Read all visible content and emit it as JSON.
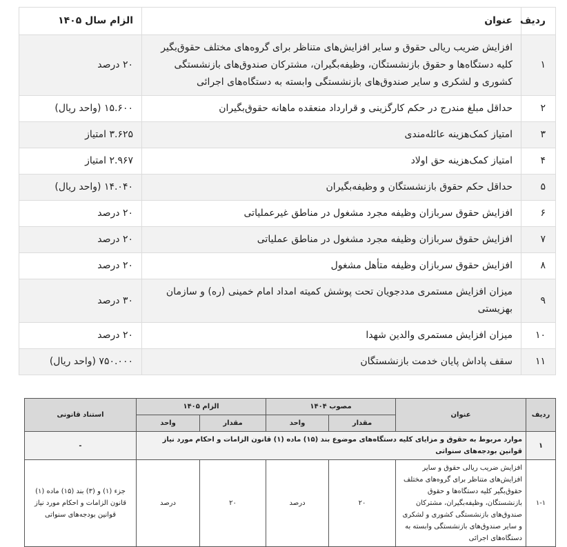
{
  "table1": {
    "header": [
      "ردیف",
      "عنوان",
      "الزام سال ۱۴۰۵"
    ],
    "rows": [
      [
        "۱",
        "افزایش ضریب ریالی حقوق و سایر افزایش‌های متناظر برای گروه‌های مختلف حقوق‌بگیر کلیه دستگاه‌ها و حقوق بازنشستگان، وظیفه‌بگیران، مشترکان صندوق‌های بازنشستگی کشوری و لشکری و سایر صندوق‌های بازنشستگی وابسته به دستگاه‌های اجرائی",
        "۲۰ درصد"
      ],
      [
        "۲",
        "حداقل مبلغ مندرج در حکم کارگزینی و قرارداد منعقده ماهانه حقوق‌بگیران",
        "۱۵.۶۰۰ (واحد ریال)"
      ],
      [
        "۳",
        "امتیاز کمک‌هزینه عائله‌مندی",
        "۳.۶۲۵ امتیاز"
      ],
      [
        "۴",
        "امتیاز کمک‌هزینه حق اولاد",
        "۲.۹۶۷ امتیاز"
      ],
      [
        "۵",
        "حداقل حکم حقوق بازنشستگان و وظیفه‌بگیران",
        "۱۴.۰۴۰ (واحد ریال)"
      ],
      [
        "۶",
        "افزایش حقوق سربازان وظیفه مجرد مشغول در مناطق غیرعملیاتی",
        "۲۰ درصد"
      ],
      [
        "۷",
        "افزایش حقوق سربازان وظیفه مجرد مشغول در مناطق عملیاتی",
        "۲۰ درصد"
      ],
      [
        "۸",
        "افزایش حقوق سربازان وظیفه متأهل مشغول",
        "۲۰ درصد"
      ],
      [
        "۹",
        "میزان افزایش مستمری مددجویان تحت پوشش کمیته امداد امام خمینی (ره) و سازمان بهزیستی",
        "۳۰ درصد"
      ],
      [
        "۱۰",
        "میزان افزایش مستمری والدین شهدا",
        "۲۰ درصد"
      ],
      [
        "۱۱",
        "سقف پاداش پایان خدمت بازنشستگان",
        "۷۵۰.۰۰۰ (واحد ریال)"
      ]
    ]
  },
  "table2": {
    "header": [
      "ردیف",
      "عنوان",
      "مصوب ۱۴۰۴",
      "الزام ۱۴۰۵",
      "استناد قانونی"
    ],
    "subheader": [
      "مقدار",
      "واحد",
      "مقدار",
      "واحد"
    ],
    "section": [
      "۱",
      "موارد مربوط به حقوق و مزایای کلیه دستگاه‌های موضوع بند (۱۵) ماده (۱) قانون الزامات و احکام مورد نیاز قوانین بودجه‌های سنواتی",
      "-"
    ],
    "rows": [
      [
        "۱-۱",
        "افزایش ضریب ریالی حقوق و سایر افزایش‌های متناظر برای گروه‌های مختلف حقوق‌بگیر کلیه دستگاه‌ها و حقوق بازنشستگان، وظیفه‌بگیران، مشترکان صندوق‌های بازنشستگی کشوری و لشکری و سایر صندوق‌های بازنشستگی وابسته به دستگاه‌های اجرائی",
        "۲۰",
        "درصد",
        "۲۰",
        "درصد",
        "جزء (۱) و (۳) بند (۱۵) ماده (۱) قانون الزامات و احکام مورد نیاز قوانین بودجه‌های سنواتی"
      ]
    ]
  }
}
